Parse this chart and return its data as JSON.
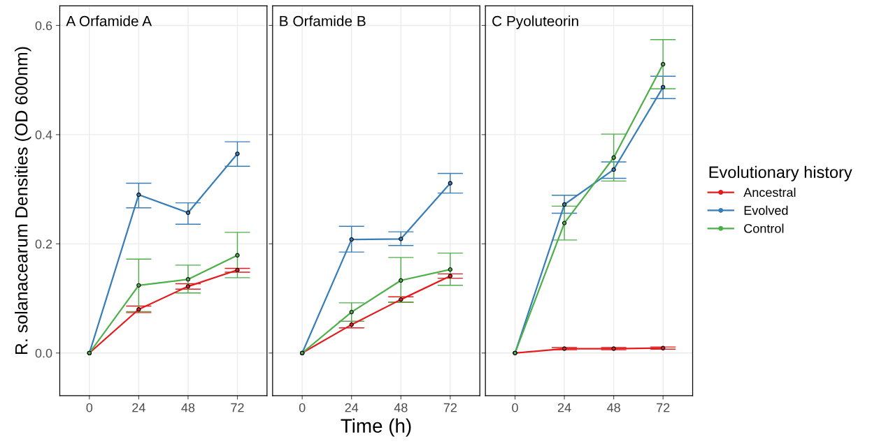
{
  "chart_data": [
    {
      "type": "line",
      "title": "A Orfamide A",
      "ylabel": "R. solanacearum Densities (OD 600nm)",
      "x": [
        0,
        24,
        48,
        72
      ],
      "xlim": [
        -14.4,
        86.4
      ],
      "xticks": [
        0,
        24,
        48,
        72
      ],
      "ylim": [
        -0.078,
        0.636
      ],
      "yticks": [
        {
          "value": 0,
          "label": "0.0"
        },
        0.2,
        0.4,
        0.6
      ],
      "grid": true,
      "marker": "circle",
      "line_style": "solid",
      "series": [
        {
          "color": "#e41a1c",
          "values": [
            0,
            0.08,
            0.122,
            0.152
          ],
          "errors": [
            null,
            [
              0.074,
              0.086
            ],
            [
              0.117,
              0.127
            ],
            [
              0.148,
              0.155
            ]
          ]
        },
        {
          "color": "#377eb8",
          "values": [
            0,
            0.29,
            0.257,
            0.365
          ],
          "errors": [
            null,
            [
              0.266,
              0.311
            ],
            [
              0.236,
              0.275
            ],
            [
              0.342,
              0.387
            ]
          ]
        },
        {
          "color": "#4daf4a",
          "values": [
            0,
            0.124,
            0.135,
            0.179
          ],
          "errors": [
            null,
            [
              0.076,
              0.172
            ],
            [
              0.11,
              0.161
            ],
            [
              0.138,
              0.221
            ]
          ]
        }
      ]
    },
    {
      "type": "line",
      "title": "B Orfamide B",
      "xlabel": "Time (h)",
      "x": [
        0,
        24,
        48,
        72
      ],
      "xlim": [
        -14.4,
        86.4
      ],
      "xticks": [
        0,
        24,
        48,
        72
      ],
      "ylim": [
        -0.078,
        0.636
      ],
      "tick_labels": "x",
      "grid": true,
      "marker": "circle",
      "line_style": "solid",
      "series": [
        {
          "color": "#e41a1c",
          "values": [
            0,
            0.052,
            0.098,
            0.141
          ],
          "errors": [
            null,
            [
              0.046,
              0.058
            ],
            [
              0.093,
              0.103
            ],
            [
              0.137,
              0.145
            ]
          ]
        },
        {
          "color": "#377eb8",
          "values": [
            0,
            0.208,
            0.209,
            0.311
          ],
          "errors": [
            null,
            [
              0.185,
              0.232
            ],
            [
              0.197,
              0.222
            ],
            [
              0.293,
              0.329
            ]
          ]
        },
        {
          "color": "#4daf4a",
          "values": [
            0,
            0.075,
            0.133,
            0.153
          ],
          "errors": [
            null,
            [
              0.058,
              0.092
            ],
            [
              0.093,
              0.175
            ],
            [
              0.124,
              0.183
            ]
          ]
        }
      ]
    },
    {
      "type": "line",
      "title": "C Pyoluteorin",
      "legend_title": "Evolutionary history",
      "x": [
        0,
        24,
        48,
        72
      ],
      "xlim": [
        -14.4,
        86.4
      ],
      "xticks": [
        0,
        24,
        48,
        72
      ],
      "ylim": [
        -0.078,
        0.636
      ],
      "tick_labels": "x",
      "grid": true,
      "marker": "circle",
      "line_style": "solid",
      "legend": "right",
      "series": [
        {
          "name": "Ancestral",
          "color": "#e41a1c",
          "values": [
            0,
            0.008,
            0.008,
            0.009
          ],
          "errors": [
            null,
            0.002,
            0.002,
            0.002
          ]
        },
        {
          "name": "Evolved",
          "color": "#377eb8",
          "values": [
            0,
            0.272,
            0.336,
            0.487
          ],
          "errors": [
            null,
            [
              0.256,
              0.289
            ],
            [
              0.32,
              0.35
            ],
            [
              0.466,
              0.507
            ]
          ]
        },
        {
          "name": "Control",
          "color": "#4daf4a",
          "values": [
            0,
            0.238,
            0.358,
            0.529
          ],
          "errors": [
            null,
            [
              0.207,
              0.269
            ],
            [
              0.315,
              0.401
            ],
            [
              0.484,
              0.574
            ]
          ]
        }
      ]
    }
  ]
}
